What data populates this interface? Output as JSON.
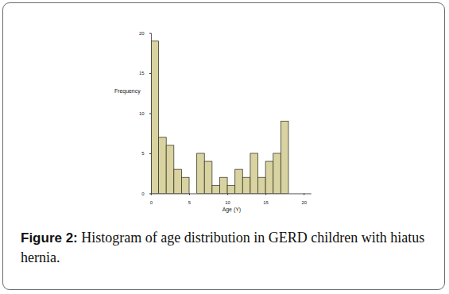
{
  "chart_data": {
    "type": "histogram",
    "title": "Figure 2: Histogram of age distribution in GERD children with hiatus hernia.",
    "x_label": "Age (Y)",
    "y_label": "Frequency",
    "bins": [
      0,
      1,
      2,
      3,
      4,
      5,
      6,
      7,
      8,
      9,
      10,
      11,
      12,
      13,
      14,
      15,
      16,
      17,
      18
    ],
    "values": [
      19,
      7,
      6,
      3,
      2,
      0,
      5,
      4,
      1,
      2,
      1,
      3,
      2,
      5,
      2,
      4,
      5,
      9
    ],
    "color": "#d8d3a0",
    "xlim": [
      0,
      21
    ],
    "xticks": [
      0,
      5,
      10,
      15,
      20
    ],
    "ylim": [
      0,
      20
    ],
    "yticks": [
      0,
      5,
      10,
      15,
      20
    ],
    "grid": false
  }
}
